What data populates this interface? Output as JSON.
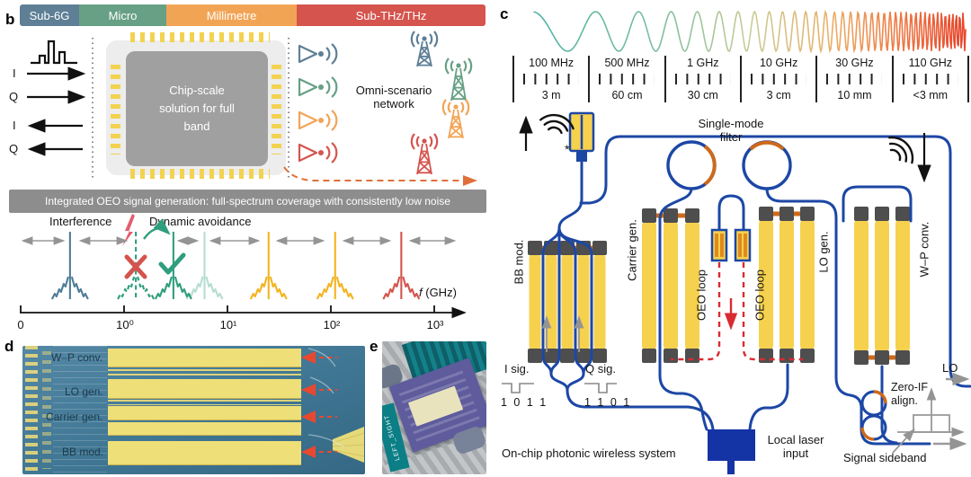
{
  "colors": {
    "sub6g": "#5e7f95",
    "micro": "#67a084",
    "millimetre": "#f2a455",
    "subthz": "#d5544e",
    "waveguide_blue": "#1c47a5",
    "electrode_yellow": "#f6d14e",
    "pad_gray": "#4e4e4e",
    "coupler_orange": "#cd6a1a",
    "oeo_red": "#d92b32",
    "banner_gray": "#8d8d8d"
  },
  "panels": {
    "b": "b",
    "c": "c",
    "d": "d",
    "e": "e"
  },
  "bands": [
    {
      "label": "Sub-6G",
      "color": "#5e7f95"
    },
    {
      "label": "Micro",
      "color": "#67a084"
    },
    {
      "label": "Millimetre",
      "color": "#f2a455"
    },
    {
      "label": "Sub-THz/THz",
      "color": "#d5544e"
    }
  ],
  "transceiver": {
    "chip_text": "Chip-scale solution for full band",
    "tx_i": "I",
    "tx_q": "Q",
    "rx_i": "I",
    "rx_q": "Q",
    "network": "Omni-scenario network"
  },
  "banner": "Integrated OEO signal generation: full-spectrum coverage with consistently low noise",
  "spectrum": {
    "interference": "Interference",
    "avoidance": "Dynamic avoidance",
    "f_italic": "f",
    "f_unit": " (GHz)",
    "ticks": [
      "0",
      "10⁰",
      "10¹",
      "10²",
      "10³"
    ],
    "peaks_ghz": [
      0.3,
      1.3,
      3,
      6,
      25,
      110,
      480
    ],
    "peak_colors": [
      "#4f7d99",
      "#2f9e7d",
      "#2f9e7d",
      "#2f9e7d",
      "#f3b41f",
      "#f3b41f",
      "#d5544e"
    ],
    "peak_styles": [
      "solid",
      "dashed",
      "solid",
      "faded",
      "solid",
      "solid",
      "solid"
    ],
    "blocked_peak_ghz": 1.3,
    "selected_peak_ghz": 3
  },
  "wave_scale": {
    "segments": [
      {
        "freq": "100 MHz",
        "wavelength": "3 m"
      },
      {
        "freq": "500 MHz",
        "wavelength": "60 cm"
      },
      {
        "freq": "1 GHz",
        "wavelength": "30 cm"
      },
      {
        "freq": "10 GHz",
        "wavelength": "3 cm"
      },
      {
        "freq": "30 GHz",
        "wavelength": "10 mm"
      },
      {
        "freq": "110 GHz",
        "wavelength": "<3 mm"
      }
    ]
  },
  "circuit": {
    "single_mode_filter": "Single-mode filter",
    "bb_mod": "BB mod.",
    "carrier_gen": "Carrier gen.",
    "oeo_loop_left": "OEO loop",
    "oeo_loop_right": "OEO loop",
    "lo_gen": "LO gen.",
    "wp_conv": "W–P conv.",
    "i_sig": "I sig.",
    "q_sig": "Q sig.",
    "i_bits": "1 0 1 1",
    "q_bits": "1 1 0 1",
    "tx_asterisk": "*",
    "system_caption": "On-chip photonic wireless system",
    "laser_label": "Local laser input",
    "zero_if": "Zero-IF align.",
    "lo_out": "LO",
    "signal_sideband": "Signal sideband"
  },
  "micrograph": {
    "wp": "W–P conv.",
    "lo": "LO gen.",
    "carrier": "Carrier gen.",
    "bb": "BB mod."
  },
  "photo": {
    "chip_tag": "LEFT_SIGHT"
  }
}
